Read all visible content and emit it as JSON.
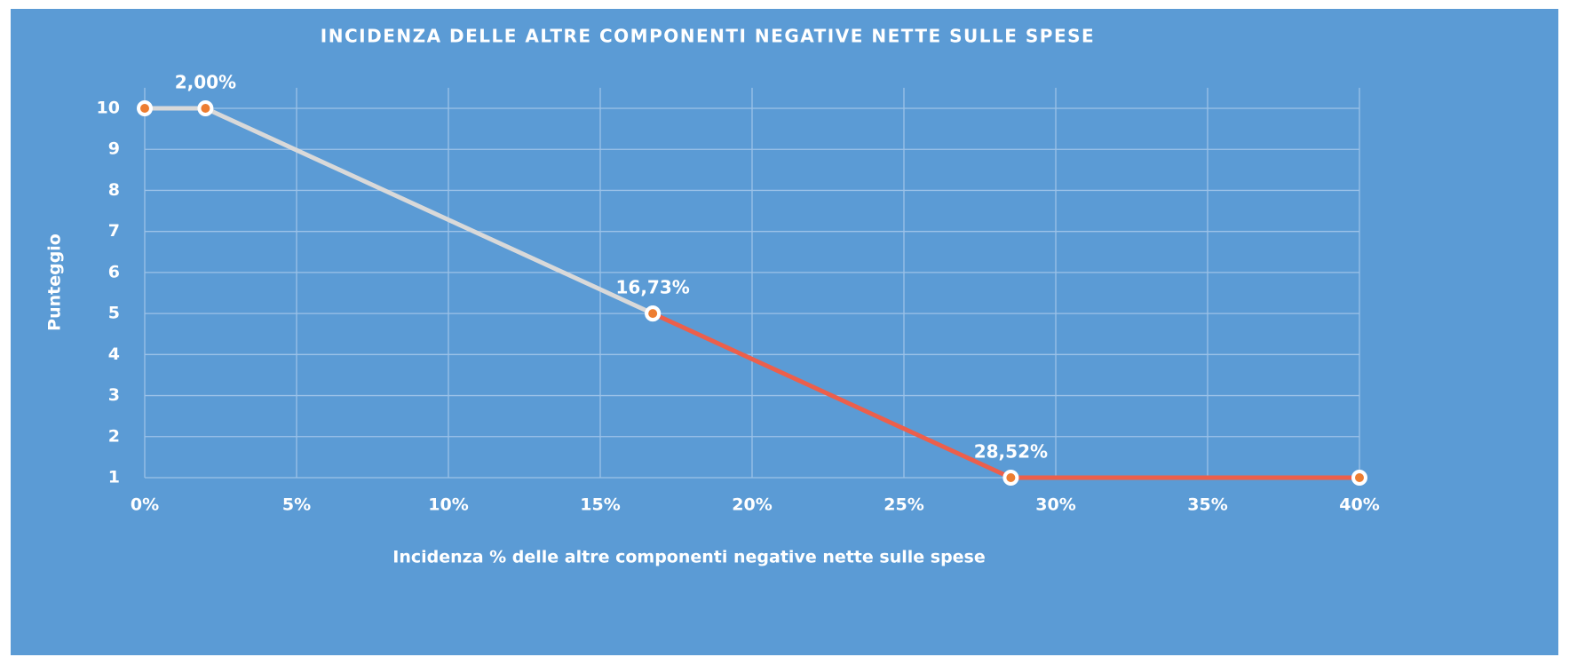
{
  "chart_data": {
    "type": "line",
    "title": "INCIDENZA DELLE ALTRE COMPONENTI NEGATIVE NETTE SULLE SPESE",
    "x_label": "Incidenza % delle altre componenti negative nette sulle spese",
    "y_label": "Punteggio",
    "series": [
      {
        "color": "#d9d9d9",
        "x": [
          0,
          2,
          16.73
        ],
        "values": [
          10,
          10,
          5
        ]
      },
      {
        "color": "#ec5f4b",
        "x": [
          16.73,
          28.52,
          40
        ],
        "values": [
          5,
          1,
          1
        ]
      }
    ],
    "marker_color": "#ed7d31",
    "annotations": [
      {
        "text": "2,00%",
        "x": 2,
        "y": 10
      },
      {
        "text": "16,73%",
        "x": 16.73,
        "y": 5
      },
      {
        "text": "28,52%",
        "x": 28.52,
        "y": 1
      }
    ],
    "xlim": [
      0,
      40
    ],
    "xticks": [
      {
        "value": 0,
        "label": "0%"
      },
      {
        "value": 5,
        "label": "5%"
      },
      {
        "value": 10,
        "label": "10%"
      },
      {
        "value": 15,
        "label": "15%"
      },
      {
        "value": 20,
        "label": "20%"
      },
      {
        "value": 25,
        "label": "25%"
      },
      {
        "value": 30,
        "label": "30%"
      },
      {
        "value": 35,
        "label": "35%"
      },
      {
        "value": 40,
        "label": "40%"
      }
    ],
    "ylim": [
      1,
      10.5
    ],
    "yticks": [
      1,
      2,
      3,
      4,
      5,
      6,
      7,
      8,
      9,
      10
    ],
    "grid": true
  }
}
